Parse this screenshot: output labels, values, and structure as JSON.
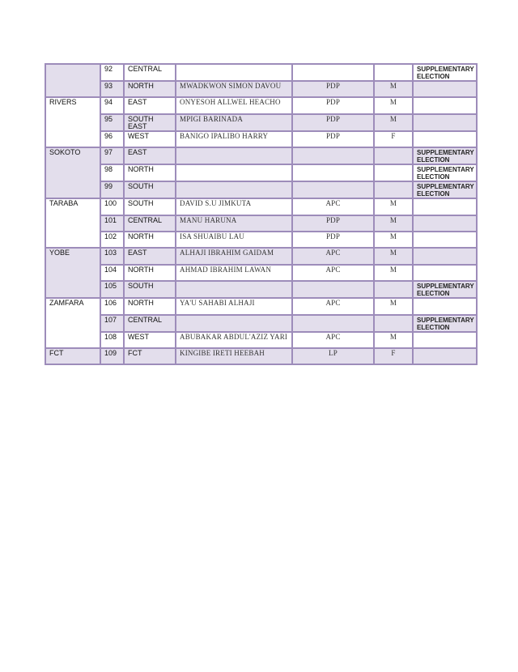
{
  "table": {
    "colors": {
      "shade": "#e3deec",
      "border": "#9d8cba"
    },
    "groups": [
      {
        "state": "",
        "shaded": true,
        "rows": [
          {
            "no": "92",
            "district": "CENTRAL",
            "name": "",
            "party": "",
            "gender": "",
            "remark": "SUPPLEMENTARY ELECTION"
          },
          {
            "no": "93",
            "district": "NORTH",
            "name": "MWADKWON SIMON DAVOU",
            "party": "PDP",
            "gender": "M",
            "remark": ""
          }
        ]
      },
      {
        "state": "RIVERS",
        "shaded": false,
        "rows": [
          {
            "no": "94",
            "district": "EAST",
            "name": "ONYESOH ALLWEL HEACHO",
            "party": "PDP",
            "gender": "M",
            "remark": ""
          },
          {
            "no": "95",
            "district": "SOUTH EAST",
            "name": "MPIGI BARINADA",
            "party": "PDP",
            "gender": "M",
            "remark": ""
          },
          {
            "no": "96",
            "district": "WEST",
            "name": "BANIGO IPALIBO HARRY",
            "party": "PDP",
            "gender": "F",
            "remark": ""
          }
        ]
      },
      {
        "state": "SOKOTO",
        "shaded": true,
        "rows": [
          {
            "no": "97",
            "district": "EAST",
            "name": "",
            "party": "",
            "gender": "",
            "remark": "SUPPLEMENTARY ELECTION"
          },
          {
            "no": "98",
            "district": "NORTH",
            "name": "",
            "party": "",
            "gender": "",
            "remark": "SUPPLEMENTARY ELECTION"
          },
          {
            "no": "99",
            "district": "SOUTH",
            "name": "",
            "party": "",
            "gender": "",
            "remark": "SUPPLEMENTARY ELECTION"
          }
        ]
      },
      {
        "state": "TARABA",
        "shaded": false,
        "rows": [
          {
            "no": "100",
            "district": "SOUTH",
            "name": "DAVID S.U JIMKUTA",
            "party": "APC",
            "gender": "M",
            "remark": ""
          },
          {
            "no": "101",
            "district": "CENTRAL",
            "name": "MANU HARUNA",
            "party": "PDP",
            "gender": "M",
            "remark": ""
          },
          {
            "no": "102",
            "district": "NORTH",
            "name": "ISA SHUAIBU LAU",
            "party": "PDP",
            "gender": "M",
            "remark": ""
          }
        ]
      },
      {
        "state": "YOBE",
        "shaded": true,
        "rows": [
          {
            "no": "103",
            "district": "EAST",
            "name": "ALHAJI IBRAHIM GAIDAM",
            "party": "APC",
            "gender": "M",
            "remark": ""
          },
          {
            "no": "104",
            "district": "NORTH",
            "name": "AHMAD IBRAHIM LAWAN",
            "party": "APC",
            "gender": "M",
            "remark": ""
          },
          {
            "no": "105",
            "district": "SOUTH",
            "name": "",
            "party": "",
            "gender": "",
            "remark": "SUPPLEMENTARY ELECTION"
          }
        ]
      },
      {
        "state": "ZAMFARA",
        "shaded": false,
        "rows": [
          {
            "no": "106",
            "district": "NORTH",
            "name": "YA'U SAHABI ALHAJI",
            "party": "APC",
            "gender": "M",
            "remark": ""
          },
          {
            "no": "107",
            "district": "CENTRAL",
            "name": "",
            "party": "",
            "gender": "",
            "remark": "SUPPLEMENTARY ELECTION"
          },
          {
            "no": "108",
            "district": "WEST",
            "name": "ABUBAKAR ABDUL'AZIZ YARI",
            "party": "APC",
            "gender": "M",
            "remark": ""
          }
        ]
      },
      {
        "state": "FCT",
        "shaded": true,
        "rows": [
          {
            "no": "109",
            "district": "FCT",
            "name": "KINGIBE IRETI HEEBAH",
            "party": "LP",
            "gender": "F",
            "remark": ""
          }
        ]
      }
    ]
  }
}
